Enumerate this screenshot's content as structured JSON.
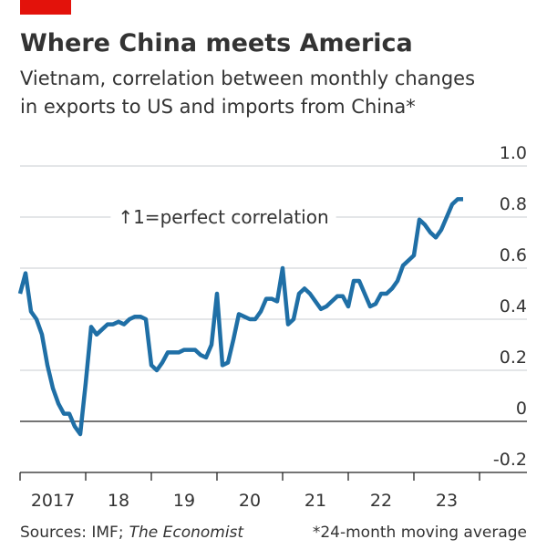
{
  "chart_data": {
    "type": "line",
    "title": "Where China meets America",
    "subtitle": [
      "Vietnam, correlation between monthly changes",
      "in exports to US and imports from China*"
    ],
    "annotation": "↑1=perfect correlation",
    "source": "Sources: IMF;",
    "source_italic": "The Economist",
    "footnote": "*24-month moving average",
    "x": [
      2017,
      2017.083,
      2017.167,
      2017.25,
      2017.333,
      2017.417,
      2017.5,
      2017.583,
      2017.667,
      2017.75,
      2017.833,
      2017.917,
      2018,
      2018.083,
      2018.167,
      2018.25,
      2018.333,
      2018.417,
      2018.5,
      2018.583,
      2018.667,
      2018.75,
      2018.833,
      2018.917,
      2019,
      2019.083,
      2019.167,
      2019.25,
      2019.333,
      2019.417,
      2019.5,
      2019.583,
      2019.667,
      2019.75,
      2019.833,
      2019.917,
      2020,
      2020.083,
      2020.167,
      2020.25,
      2020.333,
      2020.417,
      2020.5,
      2020.583,
      2020.667,
      2020.75,
      2020.833,
      2020.917,
      2021,
      2021.083,
      2021.167,
      2021.25,
      2021.333,
      2021.417,
      2021.5,
      2021.583,
      2021.667,
      2021.75,
      2021.833,
      2021.917,
      2022,
      2022.083,
      2022.167,
      2022.25,
      2022.333,
      2022.417,
      2022.5,
      2022.583,
      2022.667,
      2022.75,
      2022.833,
      2022.917,
      2023,
      2023.083,
      2023.167,
      2023.25,
      2023.333,
      2023.417,
      2023.5,
      2023.583,
      2023.667,
      2023.75
    ],
    "series": [
      {
        "color": "#1f6fa6",
        "values": [
          0.5,
          0.58,
          0.43,
          0.4,
          0.34,
          0.22,
          0.13,
          0.07,
          0.03,
          0.03,
          -0.02,
          -0.05,
          0.15,
          0.37,
          0.34,
          0.36,
          0.38,
          0.38,
          0.39,
          0.38,
          0.4,
          0.41,
          0.41,
          0.4,
          0.22,
          0.2,
          0.23,
          0.27,
          0.27,
          0.27,
          0.28,
          0.28,
          0.28,
          0.26,
          0.25,
          0.3,
          0.5,
          0.22,
          0.23,
          0.32,
          0.42,
          0.41,
          0.4,
          0.4,
          0.43,
          0.48,
          0.48,
          0.47,
          0.6,
          0.38,
          0.4,
          0.5,
          0.52,
          0.5,
          0.47,
          0.44,
          0.45,
          0.47,
          0.49,
          0.49,
          0.45,
          0.55,
          0.55,
          0.5,
          0.45,
          0.46,
          0.5,
          0.5,
          0.52,
          0.55,
          0.61,
          0.63,
          0.65,
          0.79,
          0.77,
          0.74,
          0.72,
          0.75,
          0.8,
          0.85,
          0.87,
          0.87
        ]
      }
    ],
    "xlim": [
      2017,
      2024
    ],
    "xticks": [
      2017,
      2018,
      2019,
      2020,
      2021,
      2022,
      2023,
      2024
    ],
    "year_labels": [
      {
        "value": 2017.5,
        "label": "2017"
      },
      {
        "value": 2018.5,
        "label": "18"
      },
      {
        "value": 2019.5,
        "label": "19"
      },
      {
        "value": 2020.5,
        "label": "20"
      },
      {
        "value": 2021.5,
        "label": "21"
      },
      {
        "value": 2022.5,
        "label": "22"
      },
      {
        "value": 2023.5,
        "label": "23"
      }
    ],
    "ylim": [
      -0.2,
      1.0
    ],
    "yticks": [
      -0.2,
      0,
      0.2,
      0.4,
      0.6,
      0.8,
      {
        "value": 1,
        "label": "1.0"
      }
    ],
    "grid": true
  }
}
